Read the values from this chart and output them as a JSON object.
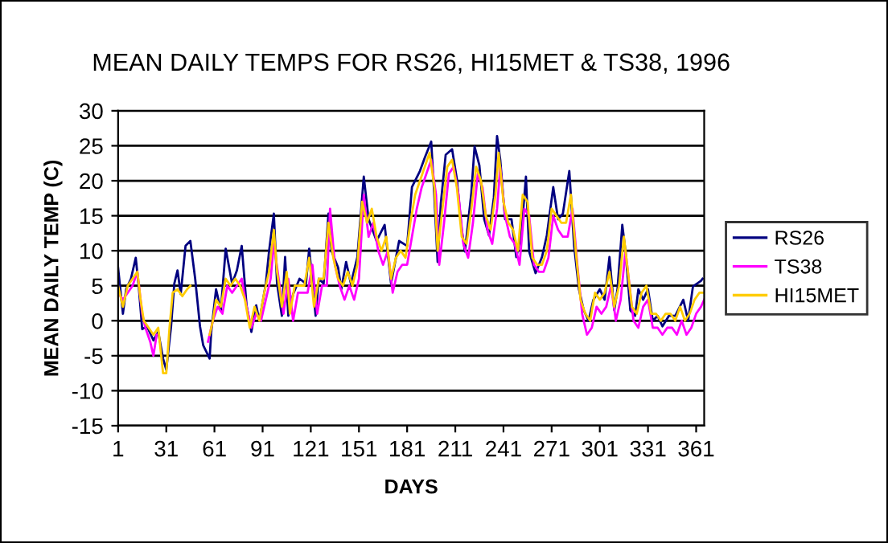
{
  "chart_data": {
    "type": "line",
    "title": "MEAN DAILY TEMPS FOR RS26, HI15MET & TS38, 1996",
    "xlabel": "DAYS",
    "ylabel": "MEAN DAILY TEMP (C)",
    "xlim": [
      1,
      366
    ],
    "xticks": [
      1,
      31,
      61,
      91,
      121,
      151,
      181,
      211,
      241,
      271,
      301,
      331,
      361
    ],
    "ylim": [
      -15,
      30
    ],
    "yticks": [
      -15,
      -10,
      -5,
      0,
      5,
      10,
      15,
      20,
      25,
      30
    ],
    "grid": "y",
    "legend": "right",
    "marker": "none",
    "line_style": "solid",
    "series": [
      {
        "name": "RS26",
        "color": "#000080",
        "x": [
          1,
          4,
          6,
          9,
          12,
          14,
          16,
          19,
          23,
          26,
          29,
          31,
          34,
          36,
          38,
          40,
          43,
          46,
          49,
          52,
          54,
          58,
          59,
          62,
          65,
          68,
          72,
          75,
          78,
          81,
          84,
          87,
          89,
          93,
          95,
          98,
          100,
          103,
          105,
          107,
          110,
          114,
          118,
          120,
          124,
          126,
          129,
          132,
          134,
          138,
          140,
          143,
          146,
          150,
          154,
          157,
          162,
          167,
          171,
          176,
          181,
          184,
          189,
          192,
          196,
          198,
          200,
          202,
          205,
          209,
          212,
          215,
          217,
          221,
          223,
          226,
          229,
          232,
          235,
          237,
          239,
          242,
          246,
          249,
          252,
          255,
          257,
          261,
          265,
          268,
          272,
          275,
          278,
          282,
          285,
          288,
          291,
          294,
          297,
          301,
          304,
          307,
          310,
          312,
          315,
          317,
          320,
          323,
          325,
          328,
          331,
          334,
          337,
          340,
          344,
          348,
          353,
          356,
          359,
          364,
          365
        ],
        "values": [
          7.6,
          1,
          4.5,
          6,
          9,
          4.5,
          -1.2,
          -0.8,
          -2.8,
          -1.6,
          -5.4,
          -7,
          -0.8,
          5.3,
          7.2,
          3.8,
          10.7,
          11.4,
          6,
          -0.8,
          -3.5,
          -5.4,
          -1.6,
          4.5,
          1.5,
          10.3,
          5.3,
          7.2,
          10.7,
          2.2,
          -1.6,
          2.2,
          0,
          5.3,
          9.9,
          15.3,
          5.3,
          0.7,
          9.1,
          0.7,
          3.8,
          6,
          5.3,
          10.3,
          0.7,
          6,
          5.3,
          15.3,
          9.9,
          7.6,
          4.5,
          8.4,
          5.3,
          9.1,
          20.6,
          14.5,
          11.4,
          13.7,
          5.3,
          11.4,
          10.7,
          19.1,
          21.4,
          23.3,
          25.6,
          17.6,
          8.4,
          16.8,
          23.7,
          24.5,
          20.2,
          13,
          9.9,
          18.3,
          24.9,
          22.2,
          14.5,
          12.2,
          17.6,
          26.4,
          23,
          14.5,
          14.5,
          9.1,
          12.2,
          20.6,
          9.9,
          6.8,
          9.1,
          12.2,
          19.1,
          14.5,
          15.3,
          21.4,
          10.7,
          4.5,
          1.5,
          0,
          3,
          4.5,
          3,
          9.1,
          1.5,
          4.5,
          13.7,
          9.9,
          1.5,
          0.7,
          4.5,
          3,
          4.5,
          0,
          0.7,
          -0.8,
          0.7,
          0.7,
          3,
          0,
          4.9,
          5.7,
          6
        ]
      },
      {
        "name": "TS38",
        "color": "#ff00ff",
        "x": [
          1,
          4,
          7,
          10,
          13,
          16,
          18,
          21,
          23,
          25,
          26,
          56,
          57,
          60,
          63,
          66,
          69,
          72,
          75,
          78,
          81,
          84,
          87,
          90,
          93,
          96,
          98,
          101,
          104,
          107,
          110,
          113,
          116,
          119,
          122,
          125,
          128,
          131,
          133,
          136,
          139,
          142,
          145,
          148,
          151,
          154,
          157,
          160,
          163,
          166,
          169,
          172,
          175,
          178,
          181,
          184,
          187,
          190,
          193,
          196,
          199,
          201,
          204,
          207,
          210,
          213,
          216,
          219,
          222,
          225,
          228,
          231,
          234,
          237,
          239,
          242,
          245,
          248,
          251,
          254,
          257,
          260,
          263,
          266,
          269,
          272,
          275,
          278,
          281,
          284,
          287,
          290,
          293,
          296,
          299,
          302,
          305,
          308,
          311,
          314,
          317,
          319,
          322,
          325,
          328,
          331,
          334,
          337,
          340,
          343,
          346,
          349,
          352,
          355,
          358,
          361,
          364,
          366
        ],
        "values": [
          4,
          3,
          4,
          5,
          7,
          1,
          -1,
          -3,
          -5,
          -2,
          null,
          null,
          -3,
          0,
          2,
          1,
          5,
          4,
          5,
          6,
          2,
          -1,
          1,
          0,
          3,
          6,
          11,
          6,
          1,
          6,
          0,
          4,
          4,
          4,
          8,
          1,
          5,
          5,
          16,
          8,
          5,
          3,
          5,
          3,
          6,
          18,
          12,
          14,
          10,
          8,
          10,
          4,
          7,
          8,
          8,
          12,
          16,
          19,
          21,
          23,
          18,
          8,
          14,
          21,
          22,
          18,
          11,
          9,
          14,
          21,
          19,
          13,
          11,
          16,
          22,
          15,
          12,
          11,
          8,
          16,
          15,
          8,
          7,
          7,
          9,
          15,
          13,
          12,
          12,
          16,
          8,
          1,
          -2,
          -1,
          2,
          1,
          2,
          5,
          0,
          3,
          10,
          6,
          0,
          -1,
          2,
          3,
          -1,
          -1,
          -2,
          -1,
          -1,
          -2,
          0,
          -2,
          -1,
          1,
          2,
          3
        ]
      },
      {
        "name": "HI15MET",
        "color": "#ffcc00",
        "x": [
          1,
          4,
          7,
          10,
          13,
          15,
          17,
          20,
          23,
          26,
          29,
          31,
          33,
          35,
          38,
          41,
          44,
          46,
          47,
          57,
          58,
          60,
          62,
          65,
          68,
          71,
          74,
          77,
          80,
          83,
          86,
          89,
          92,
          95,
          98,
          100,
          103,
          106,
          108,
          111,
          114,
          117,
          120,
          123,
          126,
          129,
          132,
          135,
          138,
          141,
          144,
          147,
          150,
          153,
          156,
          159,
          162,
          165,
          168,
          171,
          174,
          177,
          180,
          183,
          186,
          189,
          192,
          195,
          198,
          200,
          203,
          206,
          209,
          212,
          215,
          218,
          221,
          224,
          227,
          230,
          233,
          236,
          238,
          241,
          244,
          247,
          250,
          253,
          256,
          259,
          262,
          265,
          268,
          271,
          274,
          277,
          280,
          283,
          286,
          289,
          292,
          295,
          298,
          301,
          304,
          307,
          310,
          313,
          316,
          318,
          321,
          324,
          327,
          330,
          333,
          336,
          339,
          342,
          345,
          348,
          351,
          354,
          357,
          360,
          363,
          366
        ],
        "values": [
          5,
          2,
          5,
          6,
          7,
          3,
          0,
          -1,
          -2,
          -1,
          -7.5,
          -7.5,
          -1,
          4,
          4.5,
          3.5,
          4.5,
          5,
          null,
          null,
          -2,
          0,
          3,
          2,
          6,
          5,
          6,
          5,
          3,
          -1,
          2,
          0,
          4,
          7,
          13,
          7,
          2,
          7,
          1,
          5,
          5,
          5,
          9,
          2,
          6,
          6,
          14,
          9,
          6,
          5,
          7,
          5,
          8,
          17,
          14,
          16,
          12,
          10,
          12,
          6,
          9,
          10,
          9,
          14,
          18,
          20,
          22,
          24,
          19,
          10,
          16,
          22,
          23,
          19,
          12,
          11,
          16,
          22,
          20,
          15,
          13,
          18,
          24,
          17,
          14,
          13,
          10,
          18,
          17,
          9,
          8,
          8,
          10,
          16,
          15,
          14,
          14,
          18,
          10,
          3,
          1,
          0,
          4,
          3,
          4,
          7,
          2,
          5,
          12,
          8,
          2,
          1,
          4,
          5,
          1,
          1,
          0,
          1,
          1,
          0,
          2,
          0,
          1,
          3,
          4,
          4
        ]
      }
    ]
  }
}
